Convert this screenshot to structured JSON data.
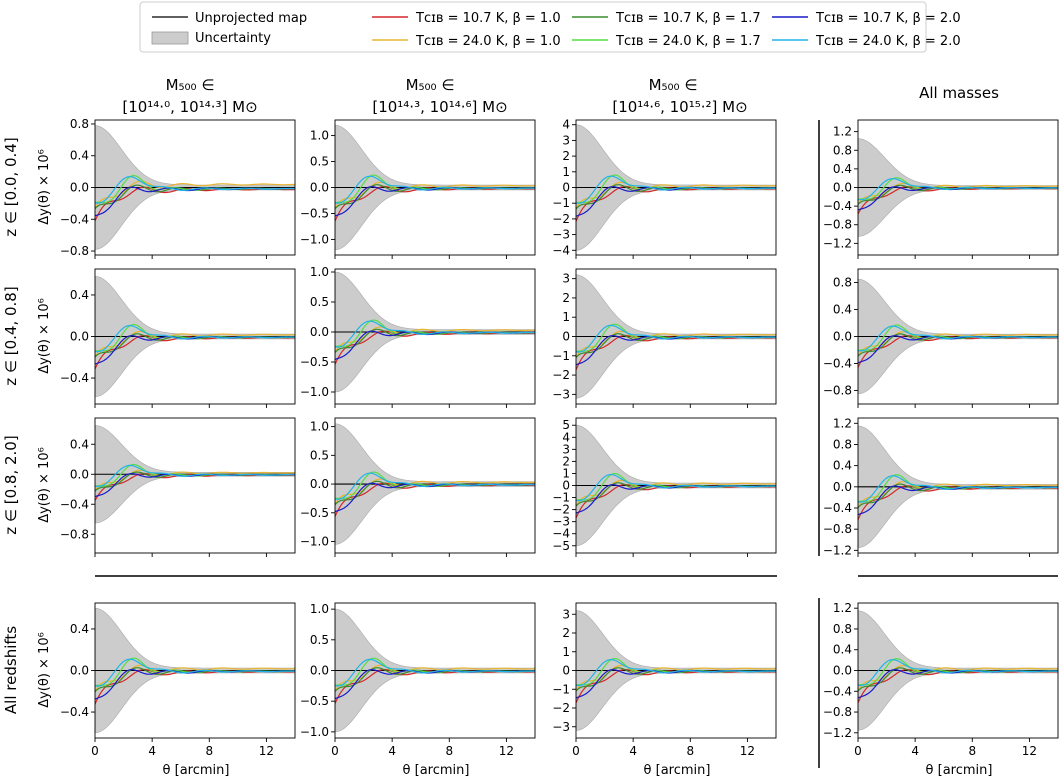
{
  "legend": {
    "unprojected": "Unprojected map",
    "uncertainty": "Uncertainty"
  },
  "columns": [
    {
      "label_1": "M₅₀₀ ∈",
      "label_2": "[10¹⁴·⁰, 10¹⁴·³] M⊙"
    },
    {
      "label_1": "M₅₀₀ ∈",
      "label_2": "[10¹⁴·³, 10¹⁴·⁶] M⊙"
    },
    {
      "label_1": "M₅₀₀ ∈",
      "label_2": "[10¹⁴·⁶, 10¹⁵·²] M⊙"
    },
    {
      "label_1": "",
      "label_2": "All masses"
    }
  ],
  "rows": [
    {
      "label": "z ∈ [0.0, 0.4]"
    },
    {
      "label": "z ∈ [0.4, 0.8]"
    },
    {
      "label": "z ∈ [0.8, 2.0]"
    },
    {
      "label": "All redshifts"
    }
  ],
  "ylabel": "Δy(θ) × 10⁶",
  "xlabel": "θ [arcmin]",
  "chart_data": {
    "type": "line",
    "xlim": [
      0,
      14
    ],
    "xticks": [
      0,
      4,
      8,
      12
    ],
    "series": [
      {
        "name": "T_CIB = 10.7 K, β = 1.0",
        "legend_label": "Tᴄɪʙ = 10.7 K, β = 1.0",
        "color": "#d62728"
      },
      {
        "name": "T_CIB = 24.0 K, β = 1.0",
        "legend_label": "Tᴄɪʙ = 24.0 K, β = 1.0",
        "color": "#e8b530"
      },
      {
        "name": "T_CIB = 10.7 K, β = 1.7",
        "legend_label": "Tᴄɪʙ = 10.7 K, β = 1.7",
        "color": "#3a8c2f"
      },
      {
        "name": "T_CIB = 24.0 K, β = 1.7",
        "legend_label": "Tᴄɪʙ = 24.0 K, β = 1.7",
        "color": "#55dd44"
      },
      {
        "name": "T_CIB = 10.7 K, β = 2.0",
        "legend_label": "Tᴄɪʙ = 10.7 K, β = 2.0",
        "color": "#1a1acc"
      },
      {
        "name": "T_CIB = 24.0 K, β = 2.0",
        "legend_label": "Tᴄɪʙ = 24.0 K, β = 2.0",
        "color": "#1fb4e8"
      }
    ],
    "panels": [
      {
        "row": 0,
        "col": 0,
        "ylim": [
          -0.85,
          0.85
        ],
        "yticks": [
          -0.8,
          -0.4,
          0.0,
          0.4,
          0.8
        ],
        "unc0": 0.78,
        "scale": 0.6
      },
      {
        "row": 0,
        "col": 1,
        "ylim": [
          -1.3,
          1.3
        ],
        "yticks": [
          -1.0,
          -0.5,
          0.0,
          0.5,
          1.0
        ],
        "unc0": 1.2,
        "scale": 0.7
      },
      {
        "row": 0,
        "col": 2,
        "ylim": [
          -4.3,
          4.3
        ],
        "yticks": [
          -4,
          -3,
          -2,
          -1,
          0,
          1,
          2,
          3,
          4
        ],
        "unc0": 4.0,
        "scale": 1.5
      },
      {
        "row": 0,
        "col": 3,
        "ylim": [
          -1.45,
          1.45
        ],
        "yticks": [
          -1.2,
          -0.8,
          -0.4,
          0.0,
          0.4,
          0.8,
          1.2
        ],
        "unc0": 1.05,
        "scale": 0.6
      },
      {
        "row": 1,
        "col": 0,
        "ylim": [
          -0.65,
          0.65
        ],
        "yticks": [
          -0.4,
          0.0,
          0.4
        ],
        "unc0": 0.58,
        "scale": 0.55
      },
      {
        "row": 1,
        "col": 1,
        "ylim": [
          -1.2,
          1.05
        ],
        "yticks": [
          -1.0,
          -0.5,
          0.0,
          0.5,
          1.0
        ],
        "unc0": 1.0,
        "scale": 1.1
      },
      {
        "row": 1,
        "col": 2,
        "ylim": [
          -3.5,
          3.5
        ],
        "yticks": [
          -3,
          -2,
          -1,
          0,
          1,
          2,
          3
        ],
        "unc0": 3.2,
        "scale": 1.1
      },
      {
        "row": 1,
        "col": 3,
        "ylim": [
          -1.0,
          1.0
        ],
        "yticks": [
          -0.8,
          -0.4,
          0.0,
          0.4,
          0.8
        ],
        "unc0": 0.85,
        "scale": 0.9
      },
      {
        "row": 2,
        "col": 0,
        "ylim": [
          -1.05,
          0.75
        ],
        "yticks": [
          -0.8,
          -0.4,
          0.0,
          0.4
        ],
        "unc0": 0.65,
        "scale": 0.95
      },
      {
        "row": 2,
        "col": 1,
        "ylim": [
          -1.2,
          1.15
        ],
        "yticks": [
          -1.0,
          -0.5,
          0.0,
          0.5,
          1.0
        ],
        "unc0": 1.05,
        "scale": 1.1
      },
      {
        "row": 2,
        "col": 2,
        "ylim": [
          -5.6,
          5.6
        ],
        "yticks": [
          -5,
          -4,
          -3,
          -2,
          -1,
          0,
          1,
          2,
          3,
          4,
          5
        ],
        "unc0": 5.0,
        "scale": 1.5
      },
      {
        "row": 2,
        "col": 3,
        "ylim": [
          -1.25,
          1.3
        ],
        "yticks": [
          -1.2,
          -0.8,
          -0.4,
          0.0,
          0.4,
          0.8,
          1.2
        ],
        "unc0": 1.15,
        "scale": 1.05
      },
      {
        "row": 3,
        "col": 0,
        "ylim": [
          -0.65,
          0.65
        ],
        "yticks": [
          -0.4,
          0.0,
          0.4
        ],
        "unc0": 0.6,
        "scale": 0.6
      },
      {
        "row": 3,
        "col": 1,
        "ylim": [
          -1.1,
          1.1
        ],
        "yticks": [
          -1.0,
          -0.5,
          0.0,
          0.5,
          1.0
        ],
        "unc0": 1.0,
        "scale": 1.0
      },
      {
        "row": 3,
        "col": 2,
        "ylim": [
          -3.6,
          3.6
        ],
        "yticks": [
          -3,
          -2,
          -1,
          0,
          1,
          2,
          3
        ],
        "unc0": 3.2,
        "scale": 1.5
      },
      {
        "row": 3,
        "col": 3,
        "ylim": [
          -1.3,
          1.3
        ],
        "yticks": [
          -1.2,
          -0.8,
          -0.4,
          0.0,
          0.4,
          0.8,
          1.2
        ],
        "unc0": 1.15,
        "scale": 0.9
      }
    ]
  }
}
